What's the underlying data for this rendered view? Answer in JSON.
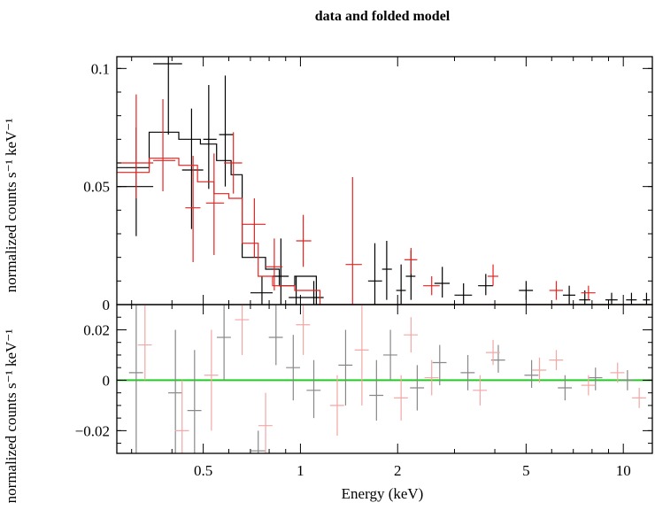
{
  "chart_data": [
    {
      "type": "line",
      "title": "data and folded model",
      "xlabel": "",
      "ylabel": "normalized counts s⁻¹ keV⁻¹",
      "x_scale": "log",
      "xlim": [
        0.27,
        12.3
      ],
      "ylim": [
        0,
        0.105
      ],
      "yticks": [
        "0",
        "0.05",
        "0.1"
      ],
      "grid": false,
      "series": [
        {
          "color": "#000000",
          "style": "data-crosses",
          "points": [
            {
              "x": 0.31,
              "xlo": 0.27,
              "xhi": 0.35,
              "y": 0.05,
              "ylo": 0.029,
              "yhi": 0.075
            },
            {
              "x": 0.39,
              "xlo": 0.35,
              "xhi": 0.43,
              "y": 0.102,
              "ylo": 0.072,
              "yhi": 0.11
            },
            {
              "x": 0.46,
              "xlo": 0.43,
              "xhi": 0.5,
              "y": 0.057,
              "ylo": 0.032,
              "yhi": 0.083
            },
            {
              "x": 0.52,
              "xlo": 0.5,
              "xhi": 0.55,
              "y": 0.07,
              "ylo": 0.049,
              "yhi": 0.093
            },
            {
              "x": 0.585,
              "xlo": 0.56,
              "xhi": 0.62,
              "y": 0.072,
              "ylo": 0.05,
              "yhi": 0.097
            },
            {
              "x": 0.76,
              "xlo": 0.7,
              "xhi": 0.82,
              "y": 0.005,
              "ylo": 0.0,
              "yhi": 0.012
            },
            {
              "x": 0.87,
              "xlo": 0.82,
              "xhi": 0.92,
              "y": 0.012,
              "ylo": 0.0,
              "yhi": 0.028
            },
            {
              "x": 0.97,
              "xlo": 0.92,
              "xhi": 1.02,
              "y": 0.003,
              "ylo": 0.0,
              "yhi": 0.012
            },
            {
              "x": 1.1,
              "xlo": 1.02,
              "xhi": 1.18,
              "y": 0.003,
              "ylo": 0.0,
              "yhi": 0.01
            },
            {
              "x": 1.7,
              "xlo": 1.62,
              "xhi": 1.79,
              "y": 0.01,
              "ylo": 0.0,
              "yhi": 0.026
            },
            {
              "x": 1.85,
              "xlo": 1.79,
              "xhi": 1.92,
              "y": 0.015,
              "ylo": 0.002,
              "yhi": 0.027
            },
            {
              "x": 2.05,
              "xlo": 1.98,
              "xhi": 2.12,
              "y": 0.006,
              "ylo": 0.0,
              "yhi": 0.017
            },
            {
              "x": 2.2,
              "xlo": 2.12,
              "xhi": 2.27,
              "y": 0.012,
              "ylo": 0.002,
              "yhi": 0.023
            },
            {
              "x": 2.75,
              "xlo": 2.6,
              "xhi": 2.9,
              "y": 0.009,
              "ylo": 0.003,
              "yhi": 0.016
            },
            {
              "x": 3.2,
              "xlo": 3.0,
              "xhi": 3.4,
              "y": 0.004,
              "ylo": 0.0,
              "yhi": 0.009
            },
            {
              "x": 3.75,
              "xlo": 3.55,
              "xhi": 3.95,
              "y": 0.008,
              "ylo": 0.004,
              "yhi": 0.013
            },
            {
              "x": 5.0,
              "xlo": 4.75,
              "xhi": 5.25,
              "y": 0.006,
              "ylo": 0.002,
              "yhi": 0.01
            },
            {
              "x": 6.8,
              "xlo": 6.5,
              "xhi": 7.1,
              "y": 0.004,
              "ylo": 0.0,
              "yhi": 0.008
            },
            {
              "x": 7.6,
              "xlo": 7.3,
              "xhi": 7.9,
              "y": 0.002,
              "ylo": 0.0,
              "yhi": 0.006
            },
            {
              "x": 9.2,
              "xlo": 8.8,
              "xhi": 9.6,
              "y": 0.002,
              "ylo": 0.0,
              "yhi": 0.005
            },
            {
              "x": 10.6,
              "xlo": 10.2,
              "xhi": 11.0,
              "y": 0.002,
              "ylo": 0.0,
              "yhi": 0.005
            },
            {
              "x": 11.8,
              "xlo": 11.5,
              "xhi": 12.1,
              "y": 0.002,
              "ylo": 0.0,
              "yhi": 0.005
            }
          ]
        },
        {
          "color": "#000000",
          "style": "model-step",
          "steps": [
            [
              0.27,
              0.058
            ],
            [
              0.34,
              0.073
            ],
            [
              0.42,
              0.07
            ],
            [
              0.49,
              0.068
            ],
            [
              0.55,
              0.061
            ],
            [
              0.61,
              0.055
            ],
            [
              0.66,
              0.02
            ],
            [
              0.78,
              0.015
            ],
            [
              0.86,
              0.008
            ],
            [
              0.96,
              0.012
            ],
            [
              1.12,
              0.0
            ]
          ]
        },
        {
          "color": "#e8221f",
          "style": "data-crosses",
          "points": [
            {
              "x": 0.31,
              "xlo": 0.27,
              "xhi": 0.35,
              "y": 0.06,
              "ylo": 0.045,
              "yhi": 0.089
            },
            {
              "x": 0.375,
              "xlo": 0.35,
              "xhi": 0.41,
              "y": 0.061,
              "ylo": 0.048,
              "yhi": 0.087
            },
            {
              "x": 0.465,
              "xlo": 0.44,
              "xhi": 0.49,
              "y": 0.041,
              "ylo": 0.018,
              "yhi": 0.063
            },
            {
              "x": 0.54,
              "xlo": 0.51,
              "xhi": 0.58,
              "y": 0.043,
              "ylo": 0.021,
              "yhi": 0.064
            },
            {
              "x": 0.62,
              "xlo": 0.58,
              "xhi": 0.66,
              "y": 0.06,
              "ylo": 0.047,
              "yhi": 0.073
            },
            {
              "x": 0.72,
              "xlo": 0.66,
              "xhi": 0.78,
              "y": 0.034,
              "ylo": 0.02,
              "yhi": 0.045
            },
            {
              "x": 0.83,
              "xlo": 0.78,
              "xhi": 0.88,
              "y": 0.016,
              "ylo": 0.006,
              "yhi": 0.028
            },
            {
              "x": 1.02,
              "xlo": 0.97,
              "xhi": 1.08,
              "y": 0.027,
              "ylo": 0.016,
              "yhi": 0.038
            },
            {
              "x": 1.45,
              "xlo": 1.38,
              "xhi": 1.55,
              "y": 0.017,
              "ylo": 0.0,
              "yhi": 0.054
            },
            {
              "x": 2.2,
              "xlo": 2.1,
              "xhi": 2.3,
              "y": 0.019,
              "ylo": 0.013,
              "yhi": 0.024
            },
            {
              "x": 2.55,
              "xlo": 2.4,
              "xhi": 2.7,
              "y": 0.008,
              "ylo": 0.004,
              "yhi": 0.012
            },
            {
              "x": 3.95,
              "xlo": 3.8,
              "xhi": 4.1,
              "y": 0.012,
              "ylo": 0.008,
              "yhi": 0.017
            },
            {
              "x": 6.2,
              "xlo": 5.9,
              "xhi": 6.5,
              "y": 0.006,
              "ylo": 0.002,
              "yhi": 0.01
            },
            {
              "x": 7.8,
              "xlo": 7.4,
              "xhi": 8.2,
              "y": 0.005,
              "ylo": 0.002,
              "yhi": 0.008
            }
          ]
        },
        {
          "color": "#e8221f",
          "style": "model-step",
          "steps": [
            [
              0.27,
              0.056
            ],
            [
              0.34,
              0.062
            ],
            [
              0.42,
              0.059
            ],
            [
              0.48,
              0.052
            ],
            [
              0.54,
              0.047
            ],
            [
              0.6,
              0.045
            ],
            [
              0.66,
              0.026
            ],
            [
              0.74,
              0.012
            ],
            [
              0.82,
              0.008
            ],
            [
              0.96,
              0.006
            ],
            [
              1.15,
              0.0
            ]
          ]
        }
      ]
    },
    {
      "type": "scatter",
      "title": "",
      "xlabel": "Energy (keV)",
      "ylabel": "normalized counts s⁻¹ keV⁻¹",
      "x_scale": "log",
      "xlim": [
        0.27,
        12.3
      ],
      "ylim": [
        -0.029,
        0.03
      ],
      "xticks": [
        "0.5",
        "1",
        "2",
        "5",
        "10"
      ],
      "yticks": [
        "−0.02",
        "0",
        "0.02"
      ],
      "grid": false,
      "zero_line": {
        "color": "#22cc22",
        "y": 0
      },
      "series": [
        {
          "color": "#888888",
          "style": "residual-crosses",
          "points": [
            {
              "x": 0.31,
              "y": 0.003,
              "ylo": -0.03,
              "yhi": 0.03
            },
            {
              "x": 0.41,
              "y": -0.005,
              "ylo": -0.03,
              "yhi": 0.02
            },
            {
              "x": 0.47,
              "y": -0.012,
              "ylo": -0.03,
              "yhi": 0.012
            },
            {
              "x": 0.58,
              "y": 0.017,
              "ylo": 0.0,
              "yhi": 0.03
            },
            {
              "x": 0.74,
              "y": -0.028,
              "ylo": -0.03,
              "yhi": -0.02
            },
            {
              "x": 0.84,
              "y": 0.017,
              "ylo": 0.006,
              "yhi": 0.03
            },
            {
              "x": 0.95,
              "y": 0.005,
              "ylo": -0.008,
              "yhi": 0.018
            },
            {
              "x": 1.1,
              "y": -0.004,
              "ylo": -0.015,
              "yhi": 0.008
            },
            {
              "x": 1.38,
              "y": 0.006,
              "ylo": -0.01,
              "yhi": 0.02
            },
            {
              "x": 1.72,
              "y": -0.006,
              "ylo": -0.016,
              "yhi": 0.008
            },
            {
              "x": 1.9,
              "y": 0.01,
              "ylo": 0.0,
              "yhi": 0.02
            },
            {
              "x": 2.3,
              "y": -0.003,
              "ylo": -0.012,
              "yhi": 0.006
            },
            {
              "x": 2.7,
              "y": 0.007,
              "ylo": -0.002,
              "yhi": 0.014
            },
            {
              "x": 3.3,
              "y": 0.003,
              "ylo": -0.004,
              "yhi": 0.01
            },
            {
              "x": 4.1,
              "y": 0.008,
              "ylo": 0.003,
              "yhi": 0.014
            },
            {
              "x": 5.2,
              "y": 0.002,
              "ylo": -0.003,
              "yhi": 0.008
            },
            {
              "x": 6.6,
              "y": -0.003,
              "ylo": -0.008,
              "yhi": 0.002
            },
            {
              "x": 8.2,
              "y": 0.001,
              "ylo": -0.004,
              "yhi": 0.005
            },
            {
              "x": 10.3,
              "y": 0.0,
              "ylo": -0.004,
              "yhi": 0.004
            }
          ]
        },
        {
          "color": "#f2a7a5",
          "style": "residual-crosses",
          "points": [
            {
              "x": 0.33,
              "y": 0.014,
              "ylo": 0.0,
              "yhi": 0.03
            },
            {
              "x": 0.43,
              "y": -0.02,
              "ylo": -0.03,
              "yhi": 0.0
            },
            {
              "x": 0.53,
              "y": 0.002,
              "ylo": -0.02,
              "yhi": 0.02
            },
            {
              "x": 0.66,
              "y": 0.024,
              "ylo": 0.01,
              "yhi": 0.03
            },
            {
              "x": 0.78,
              "y": -0.018,
              "ylo": -0.03,
              "yhi": -0.005
            },
            {
              "x": 1.02,
              "y": 0.022,
              "ylo": 0.01,
              "yhi": 0.03
            },
            {
              "x": 1.3,
              "y": -0.01,
              "ylo": -0.022,
              "yhi": 0.002
            },
            {
              "x": 1.55,
              "y": 0.012,
              "ylo": -0.01,
              "yhi": 0.03
            },
            {
              "x": 2.05,
              "y": -0.007,
              "ylo": -0.016,
              "yhi": 0.002
            },
            {
              "x": 2.2,
              "y": 0.018,
              "ylo": 0.011,
              "yhi": 0.025
            },
            {
              "x": 2.55,
              "y": 0.001,
              "ylo": -0.006,
              "yhi": 0.008
            },
            {
              "x": 3.6,
              "y": -0.004,
              "ylo": -0.01,
              "yhi": 0.002
            },
            {
              "x": 3.95,
              "y": 0.011,
              "ylo": 0.006,
              "yhi": 0.016
            },
            {
              "x": 5.5,
              "y": 0.004,
              "ylo": -0.001,
              "yhi": 0.009
            },
            {
              "x": 6.2,
              "y": 0.008,
              "ylo": 0.004,
              "yhi": 0.012
            },
            {
              "x": 7.8,
              "y": -0.002,
              "ylo": -0.006,
              "yhi": 0.002
            },
            {
              "x": 9.6,
              "y": 0.003,
              "ylo": -0.001,
              "yhi": 0.007
            },
            {
              "x": 11.2,
              "y": -0.007,
              "ylo": -0.011,
              "yhi": -0.003
            }
          ]
        }
      ]
    }
  ]
}
